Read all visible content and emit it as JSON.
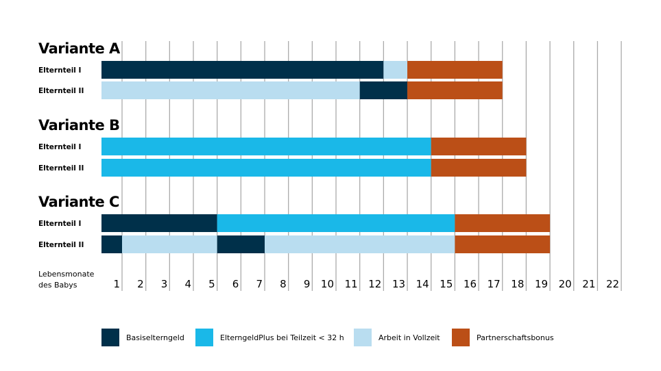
{
  "chart_data": {
    "type": "bar",
    "subtype": "gantt",
    "xlabel": "Lebensmonate des Babys",
    "xlabel_lines": [
      "Lebensmonate",
      "des Babys"
    ],
    "x_ticks": [
      "1",
      "2",
      "3",
      "4",
      "5",
      "6",
      "7",
      "8",
      "9",
      "10",
      "11",
      "12",
      "13",
      "14",
      "15",
      "16",
      "17",
      "18",
      "19",
      "20",
      "21",
      "22"
    ],
    "xlim": [
      0,
      22
    ],
    "grid": "vertical",
    "categories_legend": [
      {
        "key": "basis",
        "label": "Basiselterngeld",
        "color": "#00304a"
      },
      {
        "key": "plus",
        "label": "ElterngeldPlus bei Teilzeit < 32 h",
        "color": "#1ab8e8"
      },
      {
        "key": "voll",
        "label": "Arbeit in Vollzeit",
        "color": "#b9ddf0"
      },
      {
        "key": "bonus",
        "label": "Partnerschaftsbonus",
        "color": "#bb4f17"
      }
    ],
    "legend_position": "bottom",
    "variants": [
      {
        "title": "Variante A",
        "rows": [
          {
            "label": "Elternteil I",
            "segments": [
              {
                "type": "basis",
                "from": 0,
                "to": 12
              },
              {
                "type": "voll",
                "from": 12,
                "to": 13
              },
              {
                "type": "bonus",
                "from": 13,
                "to": 17
              }
            ]
          },
          {
            "label": "Elternteil II",
            "segments": [
              {
                "type": "voll",
                "from": 0,
                "to": 11
              },
              {
                "type": "basis",
                "from": 11,
                "to": 13
              },
              {
                "type": "bonus",
                "from": 13,
                "to": 17
              }
            ]
          }
        ]
      },
      {
        "title": "Variante B",
        "rows": [
          {
            "label": "Elternteil I",
            "segments": [
              {
                "type": "plus",
                "from": 0,
                "to": 14
              },
              {
                "type": "bonus",
                "from": 14,
                "to": 18
              }
            ]
          },
          {
            "label": "Elternteil II",
            "segments": [
              {
                "type": "plus",
                "from": 0,
                "to": 14
              },
              {
                "type": "bonus",
                "from": 14,
                "to": 18
              }
            ]
          }
        ]
      },
      {
        "title": "Variante C",
        "rows": [
          {
            "label": "Elternteil I",
            "segments": [
              {
                "type": "basis",
                "from": 0,
                "to": 5
              },
              {
                "type": "plus",
                "from": 5,
                "to": 15
              },
              {
                "type": "bonus",
                "from": 15,
                "to": 19
              }
            ]
          },
          {
            "label": "Elternteil II",
            "segments": [
              {
                "type": "basis",
                "from": 0,
                "to": 1
              },
              {
                "type": "voll",
                "from": 1,
                "to": 5
              },
              {
                "type": "basis",
                "from": 5,
                "to": 7
              },
              {
                "type": "voll",
                "from": 7,
                "to": 15
              },
              {
                "type": "bonus",
                "from": 15,
                "to": 19
              }
            ]
          }
        ]
      }
    ]
  }
}
